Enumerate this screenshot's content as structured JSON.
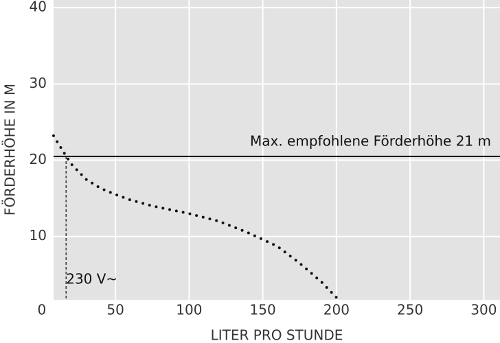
{
  "chart_data": {
    "type": "line",
    "x_label": "LITER PRO STUNDE",
    "y_label": "FÖRDERHÖHE IN M",
    "x": [
      8,
      15,
      20,
      30,
      40,
      50,
      60,
      75,
      100,
      120,
      140,
      160,
      175,
      190,
      200
    ],
    "series": [
      {
        "color": "#111111",
        "values": [
          23.2,
          21,
          19.5,
          17.5,
          16.3,
          15.5,
          14.8,
          14,
          13,
          12,
          10.5,
          8.7,
          6.5,
          4,
          2
        ]
      }
    ],
    "xlim": [
      8,
      311
    ],
    "ylim": [
      1.7,
      41
    ],
    "xticks": [
      0,
      50,
      100,
      150,
      200,
      250,
      300
    ],
    "yticks": [
      10,
      20,
      30,
      40
    ],
    "grid": true,
    "hline": {
      "value": 20.5,
      "label": "Max. empfohlene Förderhöhe 21 m"
    },
    "vline": {
      "value": 16.5,
      "label": "230 V~"
    }
  }
}
